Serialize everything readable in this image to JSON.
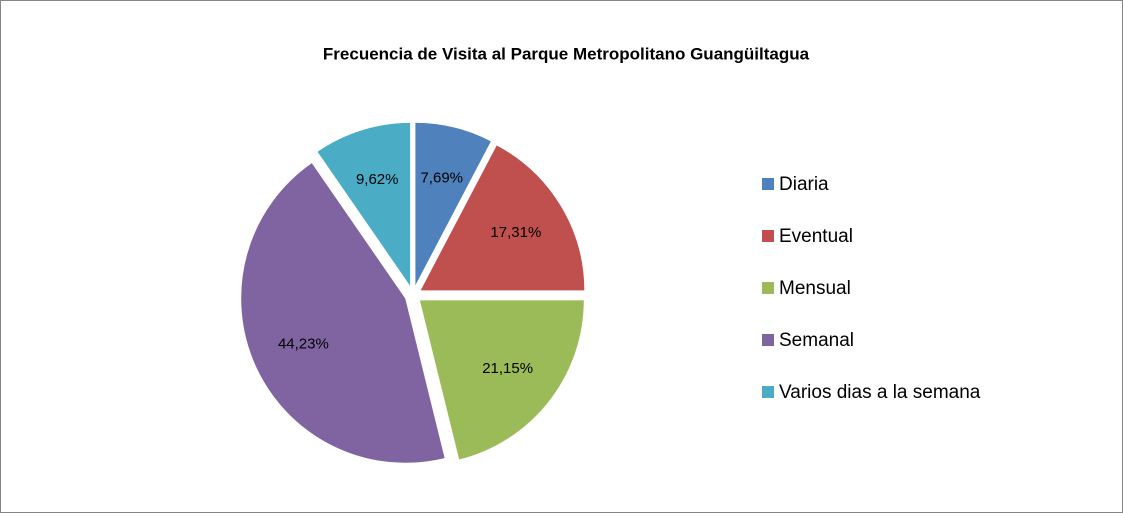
{
  "chart_data": {
    "type": "pie",
    "title": "Frecuencia de Visita al Parque Metropolitano Guangüiltagua",
    "categories": [
      "Diaria",
      "Eventual",
      "Mensual",
      "Semanal",
      "Varios dias a la semana"
    ],
    "values": [
      7.69,
      17.31,
      21.15,
      44.23,
      9.62
    ],
    "value_labels": [
      "7,69%",
      "17,31%",
      "21,15%",
      "44,23%",
      "9,62%"
    ],
    "colors": [
      "#4f81bd",
      "#c0504d",
      "#9bbb59",
      "#8064a2",
      "#4bacc6"
    ],
    "legend": "right"
  }
}
